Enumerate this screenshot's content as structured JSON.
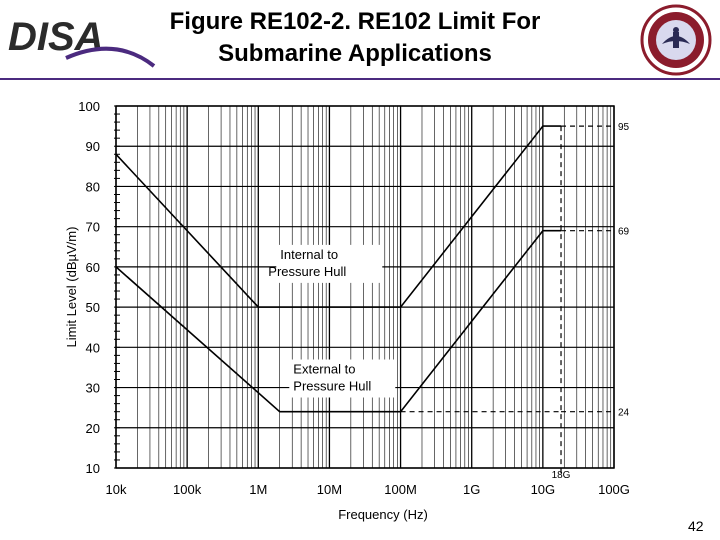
{
  "slide": {
    "logo_text": "DISA",
    "title_line1": "Figure RE102-2. RE102 Limit For",
    "title_line2": "Submarine Applications",
    "page_number": "42"
  },
  "colors": {
    "accent": "#4b2a7f",
    "seal_ring": "#8b1c2c"
  },
  "chart_data": {
    "type": "line",
    "title": "",
    "xlabel": "Frequency (Hz)",
    "ylabel": "Limit Level (dBµV/m)",
    "x_scale": "log",
    "xlim": [
      10000,
      100000000000
    ],
    "ylim": [
      10,
      100
    ],
    "x_ticks": [
      {
        "value": 10000,
        "label": "10k"
      },
      {
        "value": 100000,
        "label": "100k"
      },
      {
        "value": 1000000,
        "label": "1M"
      },
      {
        "value": 10000000,
        "label": "10M"
      },
      {
        "value": 100000000,
        "label": "100M"
      },
      {
        "value": 1000000000,
        "label": "1G"
      },
      {
        "value": 10000000000,
        "label": "10G"
      },
      {
        "value": 100000000000,
        "label": "100G"
      }
    ],
    "y_ticks": [
      10,
      20,
      30,
      40,
      50,
      60,
      70,
      80,
      90,
      100
    ],
    "grid": true,
    "series": [
      {
        "name": "Internal to Pressure Hull",
        "points": [
          [
            10000,
            88
          ],
          [
            1000000,
            50
          ],
          [
            100000000,
            50
          ],
          [
            10000000000,
            95
          ],
          [
            18000000000,
            95
          ]
        ]
      },
      {
        "name": "External to Pressure Hull",
        "points": [
          [
            10000,
            60
          ],
          [
            2000000,
            24
          ],
          [
            100000000,
            24
          ],
          [
            10000000000,
            69
          ],
          [
            18000000000,
            69
          ]
        ]
      }
    ],
    "annotations": [
      {
        "text": "95",
        "x": 20000000000,
        "y": 95
      },
      {
        "text": "69",
        "x": 20000000000,
        "y": 69
      },
      {
        "text": "24",
        "x": 20000000000,
        "y": 24
      },
      {
        "text": "18G",
        "x": 18000000000,
        "y": 10
      }
    ]
  }
}
